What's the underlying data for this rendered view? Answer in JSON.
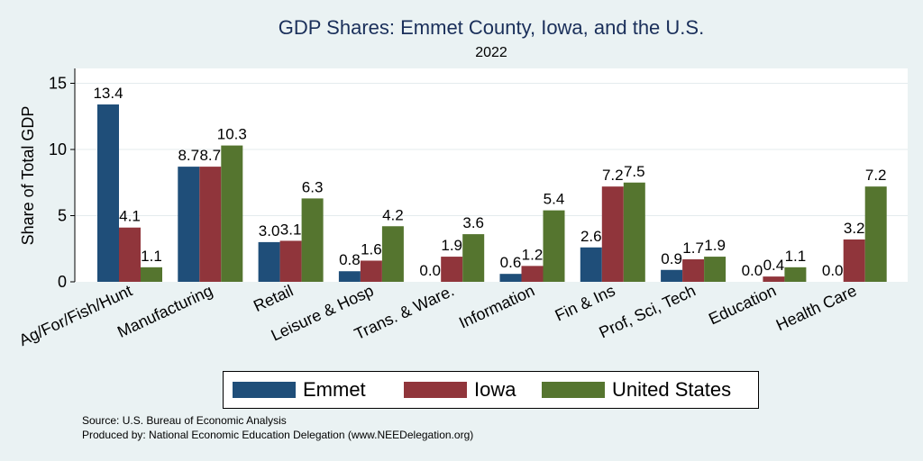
{
  "chart_data": {
    "type": "bar",
    "title": "GDP Shares: Emmet County, Iowa, and the U.S.",
    "subtitle": "2022",
    "ylabel": "Share of Total GDP",
    "xlabel": "",
    "ylim": [
      0,
      16
    ],
    "yticks": [
      0,
      5,
      10,
      15
    ],
    "grid": true,
    "legend_position": "bottom",
    "categories": [
      "Ag/For/Fish/Hunt",
      "Manufacturing",
      "Retail",
      "Leisure & Hosp",
      "Trans. & Ware.",
      "Information",
      "Fin & Ins",
      "Prof, Sci, Tech",
      "Education",
      "Health Care"
    ],
    "series": [
      {
        "name": "Emmet",
        "color": "#1f4e79",
        "values": [
          13.4,
          8.7,
          3.0,
          0.8,
          0.0,
          0.6,
          2.6,
          0.9,
          0.0,
          0.0
        ]
      },
      {
        "name": "Iowa",
        "color": "#90353b",
        "values": [
          4.1,
          8.7,
          3.1,
          1.6,
          1.9,
          1.2,
          7.2,
          1.7,
          0.4,
          3.2
        ]
      },
      {
        "name": "United States",
        "color": "#55752f",
        "values": [
          1.1,
          10.3,
          6.3,
          4.2,
          3.6,
          5.4,
          7.5,
          1.9,
          1.1,
          7.2
        ]
      }
    ]
  },
  "footnotes": {
    "source": "Source: U.S. Bureau of Economic Analysis",
    "produced": "Produced by: National Economic Education Delegation (www.NEEDelegation.org)"
  }
}
